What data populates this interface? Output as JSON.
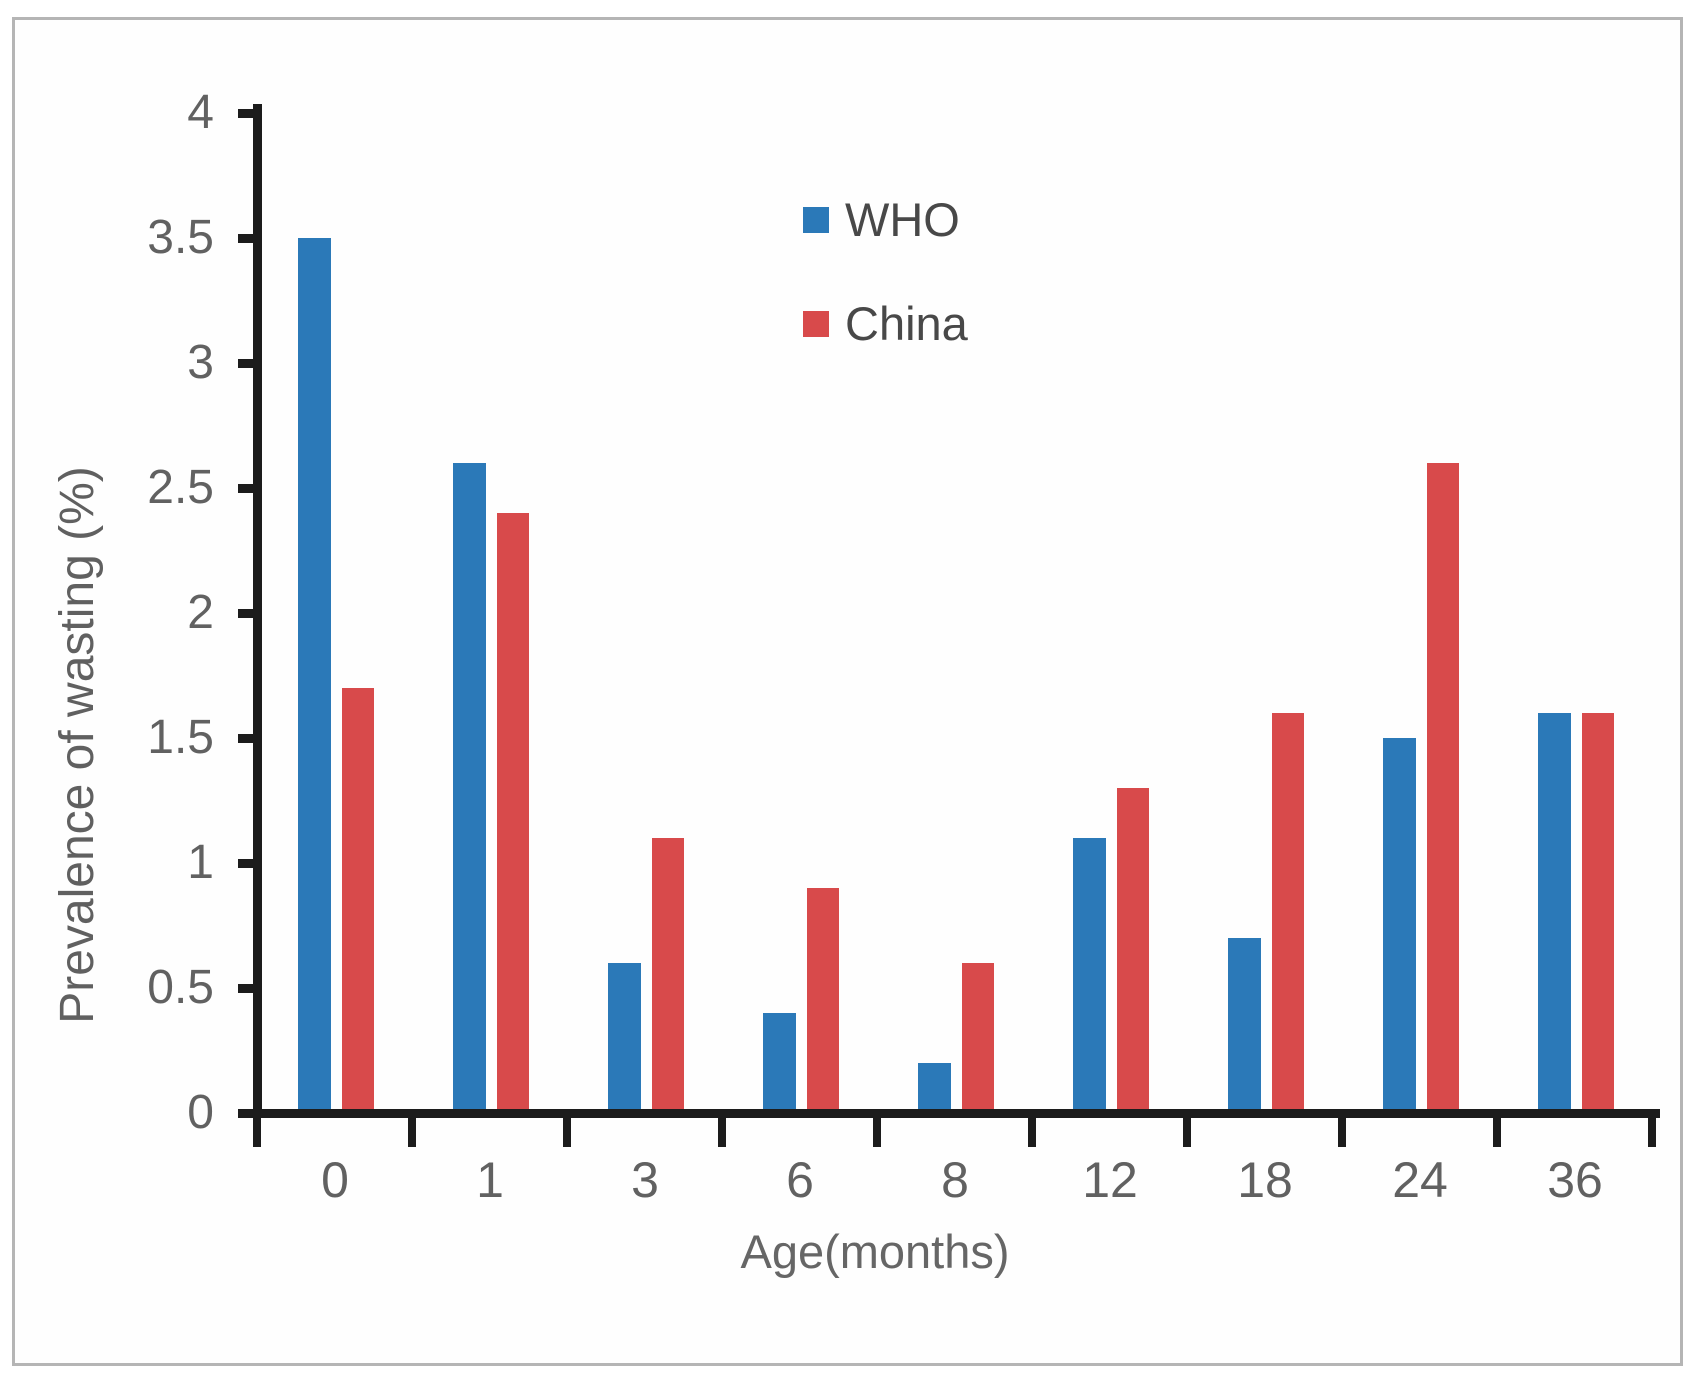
{
  "figure": {
    "border_color": "#b5b5b5",
    "background": "#ffffff"
  },
  "chart_data": {
    "type": "bar",
    "title": "",
    "xlabel": "Age(months)",
    "ylabel": "Prevalence of wasting (%)",
    "categories": [
      "0",
      "1",
      "3",
      "6",
      "8",
      "12",
      "18",
      "24",
      "36"
    ],
    "series": [
      {
        "name": "WHO",
        "color": "#2b79b8",
        "values": [
          3.5,
          2.6,
          0.6,
          0.4,
          0.2,
          1.1,
          0.7,
          1.5,
          1.6
        ]
      },
      {
        "name": "China",
        "color": "#d84a4b",
        "values": [
          1.7,
          2.4,
          1.1,
          0.9,
          0.6,
          1.3,
          1.6,
          2.6,
          1.6
        ]
      }
    ],
    "ylim": [
      0,
      4
    ],
    "y_ticks": [
      "0",
      "0.5",
      "1",
      "1.5",
      "2",
      "2.5",
      "3",
      "3.5",
      "4"
    ],
    "grid": false,
    "legend_position": "inside-top-center",
    "axis_color": "#1c1c1c",
    "tick_label_color": "#616161",
    "legend_text_color": "#484848"
  }
}
